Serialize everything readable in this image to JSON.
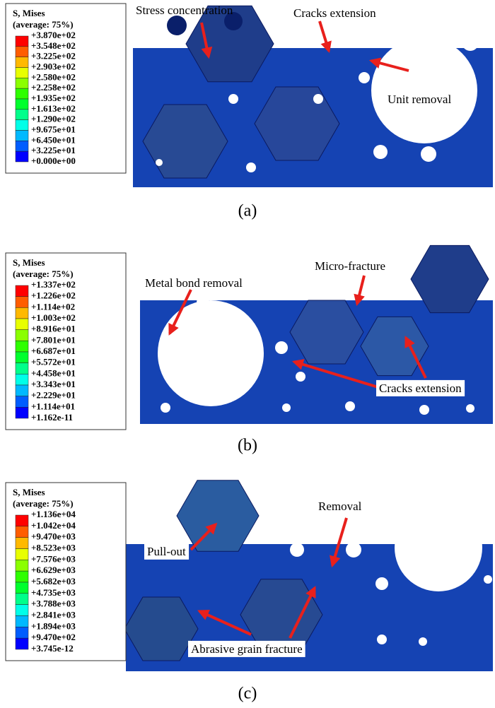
{
  "panels": [
    {
      "legend": {
        "title": "S, Mises",
        "subtitle": "(average: 75%)",
        "values": [
          "+3.870e+02",
          "+3.548e+02",
          "+3.225e+02",
          "+2.903e+02",
          "+2.580e+02",
          "+2.258e+02",
          "+1.935e+02",
          "+1.613e+02",
          "+1.290e+02",
          "+9.675e+01",
          "+6.450e+01",
          "+3.225e+01",
          "+0.000e+00"
        ]
      },
      "annotations": [
        "Stress concentration",
        "Cracks extension",
        "Unit removal"
      ],
      "caption": "(a)"
    },
    {
      "legend": {
        "title": "S, Mises",
        "subtitle": "(average: 75%)",
        "values": [
          "+1.337e+02",
          "+1.226e+02",
          "+1.114e+02",
          "+1.003e+02",
          "+8.916e+01",
          "+7.801e+01",
          "+6.687e+01",
          "+5.572e+01",
          "+4.458e+01",
          "+3.343e+01",
          "+2.229e+01",
          "+1.114e+01",
          "+1.162e-11"
        ]
      },
      "annotations": [
        "Metal bond removal",
        "Micro-fracture",
        "Cracks extension"
      ],
      "caption": "(b)"
    },
    {
      "legend": {
        "title": "S, Mises",
        "subtitle": "(average: 75%)",
        "values": [
          "+1.136e+04",
          "+1.042e+04",
          "+9.470e+03",
          "+8.523e+03",
          "+7.576e+03",
          "+6.629e+03",
          "+5.682e+03",
          "+4.735e+03",
          "+3.788e+03",
          "+2.841e+03",
          "+1.894e+03",
          "+9.470e+02",
          "+3.745e-12"
        ]
      },
      "annotations": [
        "Pull-out",
        "Removal",
        "Abrasive grain fracture"
      ],
      "caption": "(c)"
    }
  ]
}
